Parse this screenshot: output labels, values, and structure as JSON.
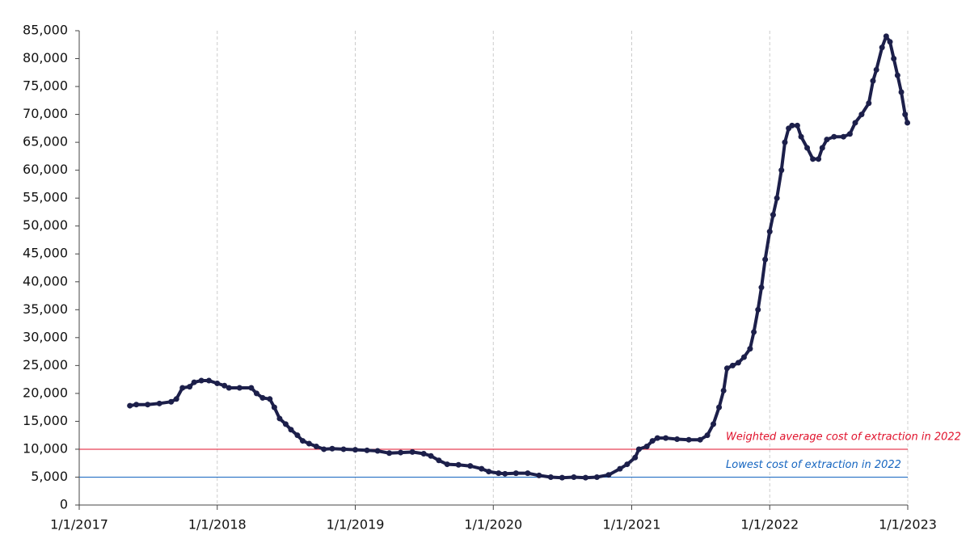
{
  "chart_data": {
    "type": "scatter",
    "color": "#1c1f4a",
    "x": [
      "5/15/2017",
      "6/1/2017",
      "7/1/2017",
      "8/1/2017",
      "9/1/2017",
      "9/15/2017",
      "10/1/2017",
      "10/20/2017",
      "11/1/2017",
      "11/20/2017",
      "12/10/2017",
      "1/1/2018",
      "1/20/2018",
      "2/1/2018",
      "3/1/2018",
      "4/1/2018",
      "4/15/2018",
      "5/1/2018",
      "5/20/2018",
      "6/1/2018",
      "6/15/2018",
      "7/1/2018",
      "7/15/2018",
      "8/1/2018",
      "8/15/2018",
      "9/1/2018",
      "9/20/2018",
      "10/10/2018",
      "11/1/2018",
      "12/1/2018",
      "1/1/2019",
      "2/1/2019",
      "3/1/2019",
      "4/1/2019",
      "5/1/2019",
      "6/1/2019",
      "7/1/2019",
      "7/20/2019",
      "8/10/2019",
      "9/1/2019",
      "10/1/2019",
      "11/1/2019",
      "12/1/2019",
      "12/20/2019",
      "1/15/2020",
      "2/1/2020",
      "3/1/2020",
      "4/1/2020",
      "5/1/2020",
      "6/1/2020",
      "7/1/2020",
      "8/1/2020",
      "9/1/2020",
      "10/1/2020",
      "11/1/2020",
      "12/1/2020",
      "12/20/2020",
      "1/10/2021",
      "1/20/2021",
      "2/10/2021",
      "2/25/2021",
      "3/10/2021",
      "4/1/2021",
      "5/1/2021",
      "6/1/2021",
      "7/1/2021",
      "7/20/2021",
      "8/5/2021",
      "8/20/2021",
      "9/1/2021",
      "9/10/2021",
      "9/25/2021",
      "10/10/2021",
      "10/25/2021",
      "11/10/2021",
      "11/20/2021",
      "12/1/2021",
      "12/10/2021",
      "12/20/2021",
      "1/1/2022",
      "1/10/2022",
      "1/20/2022",
      "2/1/2022",
      "2/10/2022",
      "2/20/2022",
      "3/1/2022",
      "3/15/2022",
      "3/25/2022",
      "4/10/2022",
      "4/25/2022",
      "5/10/2022",
      "5/20/2022",
      "6/1/2022",
      "6/20/2022",
      "7/15/2022",
      "8/1/2022",
      "8/15/2022",
      "9/1/2022",
      "9/20/2022",
      "10/1/2022",
      "10/10/2022",
      "10/25/2022",
      "11/5/2022",
      "11/15/2022",
      "11/25/2022",
      "12/5/2022",
      "12/15/2022",
      "12/25/2022",
      "12/31/2022"
    ],
    "values": [
      17800,
      18000,
      18000,
      18200,
      18500,
      19000,
      21000,
      21200,
      22000,
      22300,
      22300,
      21800,
      21400,
      21000,
      21000,
      21000,
      20000,
      19200,
      19000,
      17500,
      15500,
      14500,
      13500,
      12500,
      11500,
      11000,
      10500,
      10000,
      10100,
      10000,
      9900,
      9800,
      9700,
      9300,
      9400,
      9500,
      9200,
      8800,
      8000,
      7300,
      7200,
      7000,
      6500,
      6000,
      5700,
      5600,
      5700,
      5700,
      5300,
      5000,
      4900,
      5000,
      4900,
      5000,
      5400,
      6500,
      7300,
      8500,
      10000,
      10500,
      11500,
      12000,
      12000,
      11800,
      11700,
      11700,
      12500,
      14500,
      17500,
      20500,
      24500,
      25000,
      25500,
      26500,
      28000,
      31000,
      35000,
      39000,
      44000,
      49000,
      52000,
      55000,
      60000,
      65000,
      67500,
      68000,
      68000,
      66000,
      64000,
      62000,
      62000,
      64000,
      65500,
      66000,
      66000,
      66500,
      68500,
      70000,
      72000,
      76000,
      78000,
      82000,
      84000,
      83000,
      80000,
      77000,
      74000,
      70000,
      68500
    ],
    "xlim": [
      "1/1/2017",
      "1/1/2023"
    ],
    "xticks": [
      "1/1/2017",
      "1/1/2018",
      "1/1/2019",
      "1/1/2020",
      "1/1/2021",
      "1/1/2022",
      "1/1/2023"
    ],
    "ylim": [
      0,
      85000
    ],
    "yticks": [
      0,
      {
        "value": 5000,
        "label": "5,000"
      },
      {
        "value": 10000,
        "label": "10,000"
      },
      {
        "value": 15000,
        "label": "15,000"
      },
      {
        "value": 20000,
        "label": "20,000"
      },
      {
        "value": 25000,
        "label": "25,000"
      },
      {
        "value": 30000,
        "label": "30,000"
      },
      {
        "value": 35000,
        "label": "35,000"
      },
      {
        "value": 40000,
        "label": "40,000"
      },
      {
        "value": 45000,
        "label": "45,000"
      },
      {
        "value": 50000,
        "label": "50,000"
      },
      {
        "value": 55000,
        "label": "55,000"
      },
      {
        "value": 60000,
        "label": "60,000"
      },
      {
        "value": 65000,
        "label": "65,000"
      },
      {
        "value": 70000,
        "label": "70,000"
      },
      {
        "value": 75000,
        "label": "75,000"
      },
      {
        "value": 80000,
        "label": "80,000"
      },
      {
        "value": 85000,
        "label": "85,000"
      }
    ],
    "grid": "x",
    "reference_lines": [
      {
        "value": 10000,
        "label": "Weighted average cost of extraction in 2022",
        "color": "#e0112b"
      },
      {
        "value": 5000,
        "label": "Lowest cost of extraction in 2022",
        "color": "#1565c0"
      }
    ]
  }
}
